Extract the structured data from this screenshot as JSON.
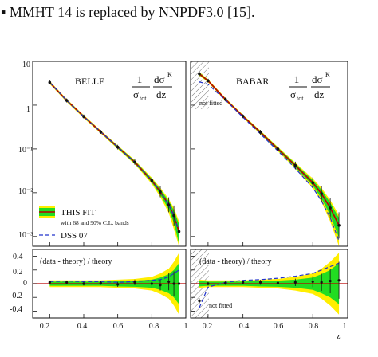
{
  "caption_fragment": {
    "text": "MMHT 14 is replaced by NNPDF3.0 [15]."
  },
  "figure": {
    "left_panel_label": "BELLE",
    "right_panel_label": "BABAR",
    "formula": {
      "one": "1",
      "sigma_tot": "σ",
      "sigma_sub": "tot",
      "dsigma": "dσ",
      "sup": "K",
      "dz": "dz"
    },
    "legend": {
      "fit_label": "THIS FIT",
      "bands_label": "with 68 and 90% C.L. bands",
      "dss_label": "DSS 07"
    },
    "not_fitted_label": "not fitted",
    "ratio_label": "(data - theory) / theory",
    "x_axis_label": "z",
    "colors": {
      "band90": "#ffee00",
      "band68": "#22dd22",
      "fit": "#bb0000",
      "dss": "#2233cc",
      "data": "#111111"
    }
  },
  "chart_data": [
    {
      "type": "scatter",
      "panel": "BELLE",
      "xlim": [
        0.1,
        1.0
      ],
      "ylim_log": [
        0.0006,
        10
      ],
      "yscale": "log",
      "y_ticks": [
        "10",
        "1",
        "10⁻¹",
        "10⁻²",
        "10⁻³"
      ],
      "x_ticks": [
        "0.2",
        "0.4",
        "0.6",
        "0.8",
        "1"
      ],
      "data_x": [
        0.2,
        0.3,
        0.4,
        0.5,
        0.6,
        0.7,
        0.8,
        0.85,
        0.9,
        0.93,
        0.96
      ],
      "data_y": [
        3.3,
        1.28,
        0.55,
        0.245,
        0.11,
        0.05,
        0.019,
        0.0105,
        0.0053,
        0.003,
        0.0013
      ],
      "fit_y": [
        3.3,
        1.28,
        0.55,
        0.245,
        0.11,
        0.05,
        0.019,
        0.0105,
        0.0053,
        0.003,
        0.0013
      ],
      "dss_y": [
        3.3,
        1.28,
        0.55,
        0.245,
        0.11,
        0.05,
        0.019,
        0.0105,
        0.0053,
        0.003,
        0.0013
      ],
      "ratio": {
        "ylim": [
          -0.5,
          0.5
        ],
        "y_ticks": [
          "0.4",
          "0.2",
          "0",
          "-0.2",
          "-0.4"
        ],
        "x": [
          0.2,
          0.3,
          0.4,
          0.5,
          0.6,
          0.7,
          0.8,
          0.85,
          0.9,
          0.93,
          0.96
        ],
        "data": [
          0.02,
          0.02,
          0.0,
          0.01,
          -0.01,
          0.02,
          0.0,
          -0.02,
          0.03,
          0.0,
          0.0
        ],
        "dss": [
          0.03,
          0.04,
          0.03,
          0.03,
          0.02,
          0.03,
          0.05,
          0.06,
          0.1,
          0.15,
          0.2
        ],
        "band90": [
          0.05,
          0.05,
          0.05,
          0.05,
          0.06,
          0.07,
          0.1,
          0.15,
          0.22,
          0.32,
          0.45
        ],
        "band68": [
          0.03,
          0.03,
          0.03,
          0.03,
          0.04,
          0.045,
          0.06,
          0.09,
          0.14,
          0.2,
          0.3
        ]
      }
    },
    {
      "type": "scatter",
      "panel": "BABAR",
      "xlim": [
        0.1,
        1.0
      ],
      "ylim_log": [
        0.0006,
        10
      ],
      "yscale": "log",
      "x_ticks": [
        "0.2",
        "0.4",
        "0.6",
        "0.8",
        "1"
      ],
      "not_fitted_below": 0.2,
      "data_x": [
        0.15,
        0.2,
        0.3,
        0.4,
        0.5,
        0.6,
        0.7,
        0.8,
        0.85,
        0.9,
        0.95
      ],
      "data_y": [
        5.2,
        3.6,
        1.35,
        0.56,
        0.24,
        0.1,
        0.042,
        0.017,
        0.0095,
        0.0045,
        0.0018
      ],
      "fit_y": [
        5.2,
        3.6,
        1.35,
        0.56,
        0.24,
        0.1,
        0.042,
        0.017,
        0.0095,
        0.0045,
        0.0018
      ],
      "dss_y": [
        3.4,
        3.0,
        1.3,
        0.53,
        0.22,
        0.09,
        0.036,
        0.013,
        0.0065,
        0.0027,
        0.0008
      ],
      "ratio": {
        "ylim": [
          -0.5,
          0.5
        ],
        "x": [
          0.15,
          0.2,
          0.3,
          0.4,
          0.5,
          0.6,
          0.7,
          0.8,
          0.85,
          0.9,
          0.95
        ],
        "data": [
          -0.25,
          0.0,
          0.01,
          0.02,
          0.02,
          0.01,
          0.02,
          0.03,
          0.02,
          0.04,
          0.05
        ],
        "dss": [
          -0.35,
          -0.05,
          0.02,
          0.05,
          0.06,
          0.08,
          0.11,
          0.15,
          0.2,
          0.25,
          0.3
        ],
        "band90": [
          0.06,
          0.05,
          0.05,
          0.05,
          0.06,
          0.07,
          0.1,
          0.15,
          0.22,
          0.32,
          0.45
        ],
        "band68": [
          0.04,
          0.03,
          0.03,
          0.03,
          0.04,
          0.045,
          0.06,
          0.09,
          0.14,
          0.2,
          0.3
        ]
      }
    }
  ]
}
